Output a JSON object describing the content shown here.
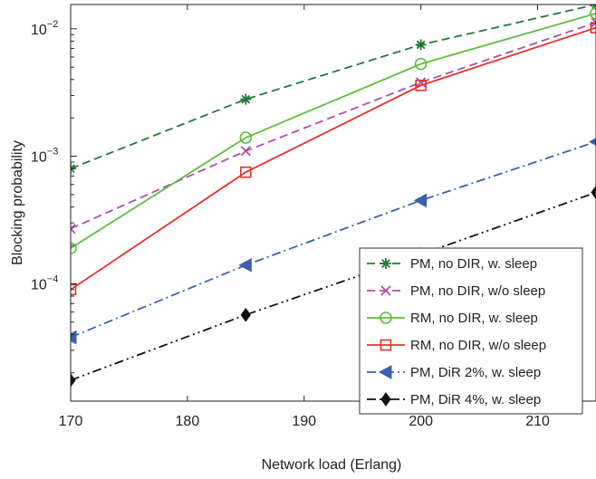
{
  "chart_data": {
    "type": "line",
    "title": "",
    "xlabel": "Network load (Erlang)",
    "ylabel": "Blocking probability",
    "x_ticks": [
      "170",
      "180",
      "190",
      "200",
      "210"
    ],
    "y_ticks": [
      {
        "value": 0.01,
        "base": "10",
        "exp": "−2"
      },
      {
        "value": 0.001,
        "base": "10",
        "exp": "−3"
      },
      {
        "value": 0.0001,
        "base": "10",
        "exp": "−4"
      }
    ],
    "xlim": [
      170,
      215
    ],
    "ylim": [
      1.2e-05,
      0.0155
    ],
    "yscale": "log",
    "grid": false,
    "legend_position": "bottom-right",
    "x": [
      170,
      185,
      200,
      215
    ],
    "series": [
      {
        "name": "PM, no DIR, w. sleep",
        "color": "#1f7a3a",
        "dash": "9,5",
        "marker": "asterisk",
        "values": [
          0.0008,
          0.0028,
          0.0075,
          0.0155
        ]
      },
      {
        "name": "PM, no DIR, w/o sleep",
        "color": "#b04cb0",
        "dash": "9,5",
        "marker": "x",
        "values": [
          0.00027,
          0.0011,
          0.0038,
          0.0112
        ]
      },
      {
        "name": "RM, no DIR, w. sleep",
        "color": "#5cbf3c",
        "dash": "",
        "marker": "circle",
        "values": [
          0.00019,
          0.0014,
          0.0053,
          0.0132
        ]
      },
      {
        "name": "RM, no DIR, w/o sleep",
        "color": "#e8302e",
        "dash": "",
        "marker": "square",
        "values": [
          9e-05,
          0.00075,
          0.0036,
          0.0102
        ]
      },
      {
        "name": "PM, DiR 2%, w. sleep",
        "color": "#3a5fb0",
        "dash": "10,4,2,4",
        "marker": "triangle-left",
        "values": [
          3.8e-05,
          0.00014,
          0.00045,
          0.0013
        ]
      },
      {
        "name": "PM, DiR 4%, w. sleep",
        "color": "#111111",
        "dash": "10,4,2,4,2,4",
        "marker": "diamond",
        "values": [
          1.75e-05,
          5.7e-05,
          0.00017,
          0.00052
        ]
      }
    ]
  }
}
